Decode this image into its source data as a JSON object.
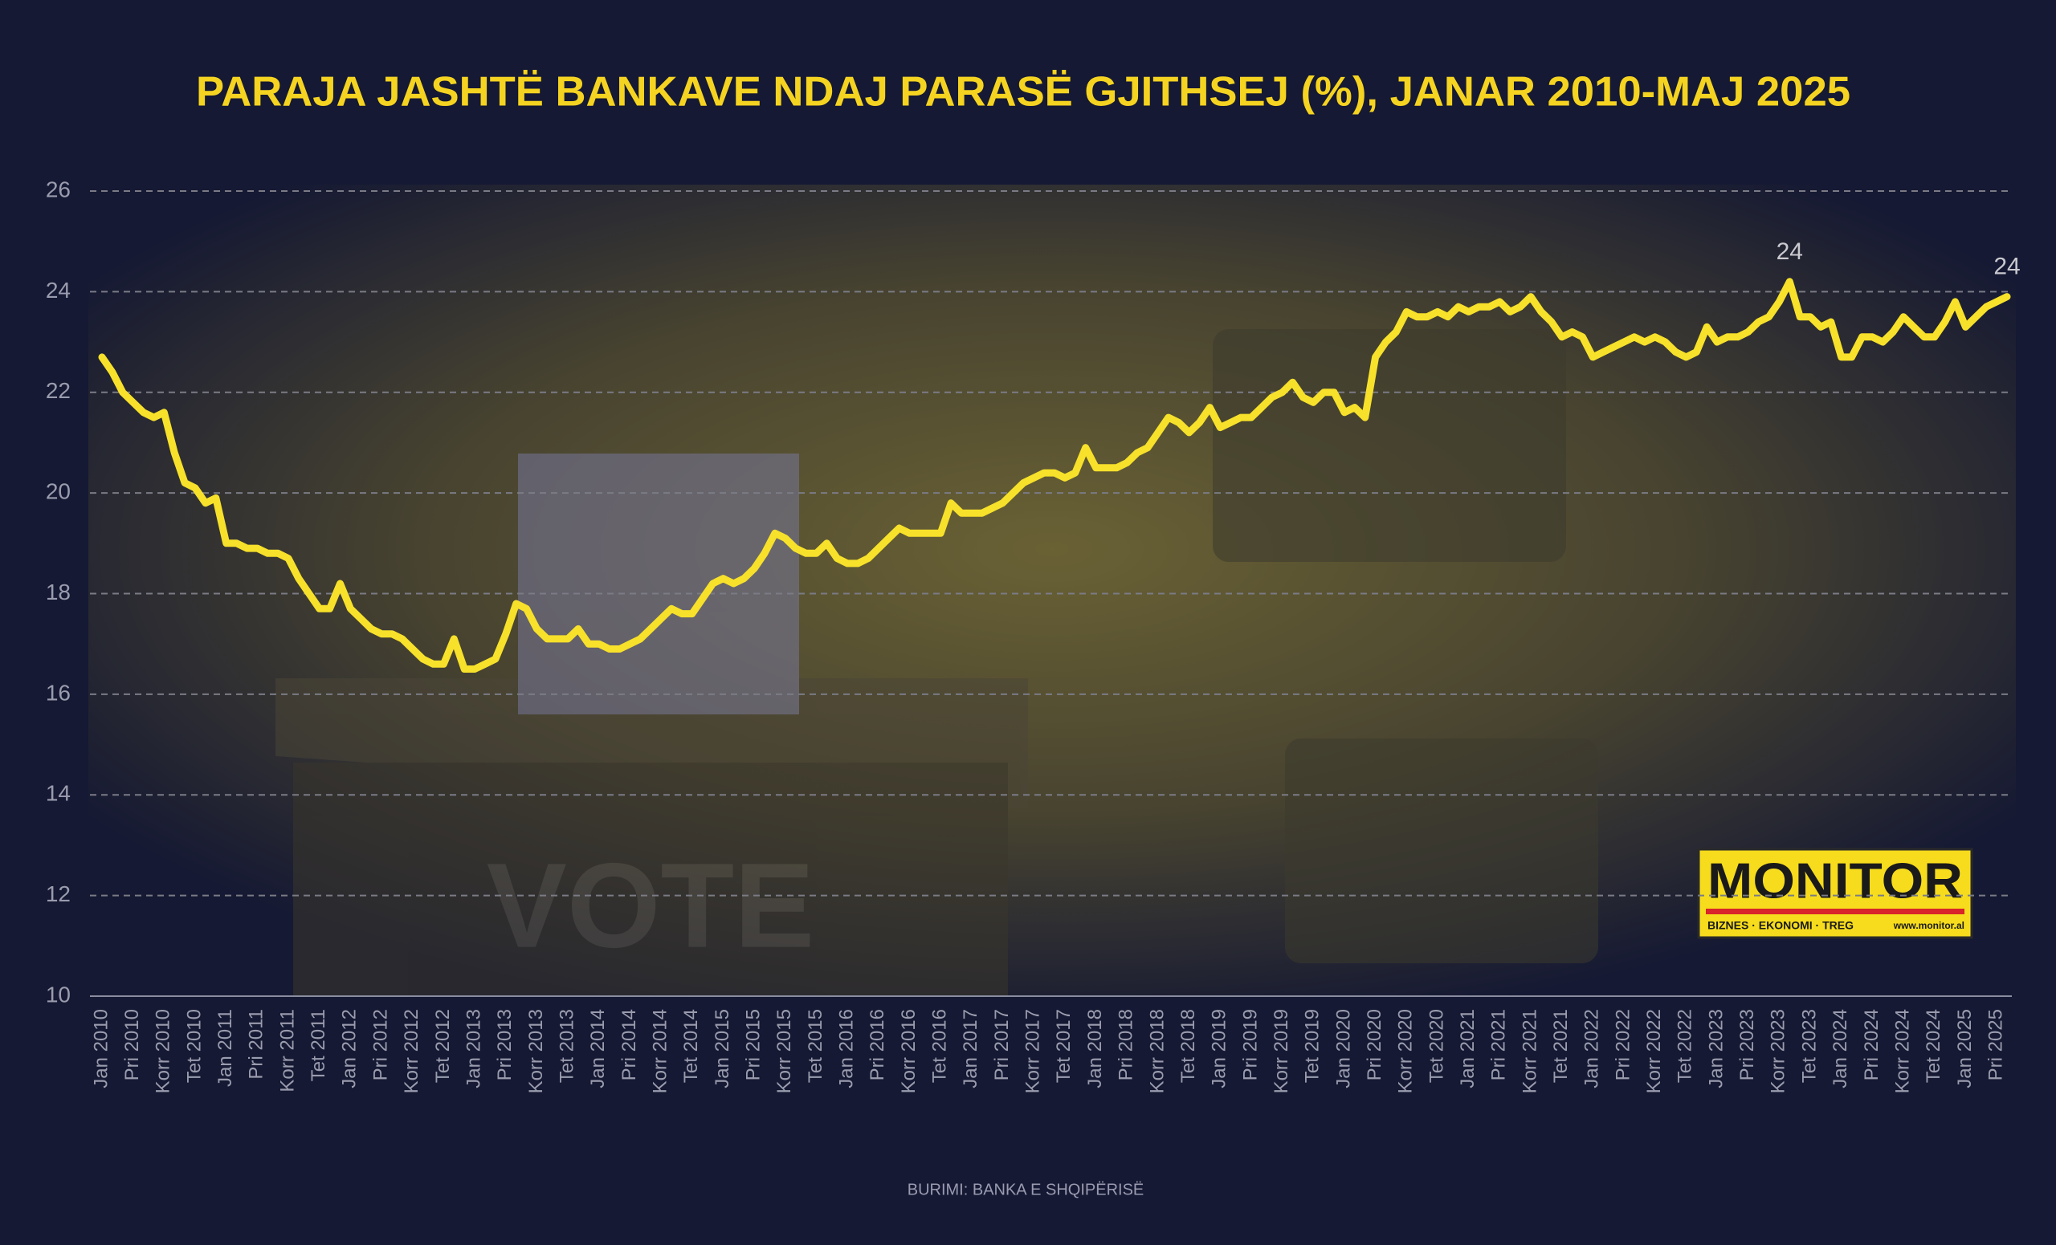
{
  "chart_data": {
    "type": "line",
    "title": "PARAJA JASHTË BANKAVE NDAJ PARASË GJITHSEJ (%), JANAR 2010-MAJ 2025",
    "source": "BURIMI: BANKA E SHQIPËRISË",
    "illustration_text": "VOTE",
    "logo": {
      "name": "MONITOR",
      "tagline": "BIZNES · EKONOMI · TREG",
      "url": "www.monitor.al"
    },
    "color": "#f7e12a",
    "ylim": [
      10,
      26
    ],
    "yticks": [
      10,
      12,
      14,
      16,
      18,
      20,
      22,
      24,
      26
    ],
    "grid": true,
    "categories": [
      "Jan 2010",
      null,
      null,
      "Pri 2010",
      null,
      null,
      "Korr 2010",
      null,
      null,
      "Tet 2010",
      null,
      null,
      "Jan 2011",
      null,
      null,
      "Pri 2011",
      null,
      null,
      "Korr 2011",
      null,
      null,
      "Tet 2011",
      null,
      null,
      "Jan 2012",
      null,
      null,
      "Pri 2012",
      null,
      null,
      "Korr 2012",
      null,
      null,
      "Tet 2012",
      null,
      null,
      "Jan 2013",
      null,
      null,
      "Pri 2013",
      null,
      null,
      "Korr 2013",
      null,
      null,
      "Tet 2013",
      null,
      null,
      "Jan 2014",
      null,
      null,
      "Pri 2014",
      null,
      null,
      "Korr 2014",
      null,
      null,
      "Tet 2014",
      null,
      null,
      "Jan 2015",
      null,
      null,
      "Pri 2015",
      null,
      null,
      "Korr 2015",
      null,
      null,
      "Tet 2015",
      null,
      null,
      "Jan 2016",
      null,
      null,
      "Pri 2016",
      null,
      null,
      "Korr 2016",
      null,
      null,
      "Tet 2016",
      null,
      null,
      "Jan 2017",
      null,
      null,
      "Pri 2017",
      null,
      null,
      "Korr 2017",
      null,
      null,
      "Tet 2017",
      null,
      null,
      "Jan 2018",
      null,
      null,
      "Pri 2018",
      null,
      null,
      "Korr 2018",
      null,
      null,
      "Tet 2018",
      null,
      null,
      "Jan 2019",
      null,
      null,
      "Pri 2019",
      null,
      null,
      "Korr 2019",
      null,
      null,
      "Tet 2019",
      null,
      null,
      "Jan 2020",
      null,
      null,
      "Pri 2020",
      null,
      null,
      "Korr 2020",
      null,
      null,
      "Tet 2020",
      null,
      null,
      "Jan 2021",
      null,
      null,
      "Pri 2021",
      null,
      null,
      "Korr 2021",
      null,
      null,
      "Tet 2021",
      null,
      null,
      "Jan 2022",
      null,
      null,
      "Pri 2022",
      null,
      null,
      "Korr 2022",
      null,
      null,
      "Tet 2022",
      null,
      null,
      "Jan 2023",
      null,
      null,
      "Pri 2023",
      null,
      null,
      "Korr 2023",
      null,
      null,
      "Tet 2023",
      null,
      null,
      "Jan 2024",
      null,
      null,
      "Pri 2024",
      null,
      null,
      "Korr 2024",
      null,
      null,
      "Tet 2024",
      null,
      null,
      "Jan 2025",
      null,
      null,
      "Pri 2025",
      null
    ],
    "values": [
      22.7,
      22.4,
      22.0,
      21.8,
      21.6,
      21.5,
      21.6,
      20.8,
      20.2,
      20.1,
      19.8,
      19.9,
      19.0,
      19.0,
      18.9,
      18.9,
      18.8,
      18.8,
      18.7,
      18.3,
      18.0,
      17.7,
      17.7,
      18.2,
      17.7,
      17.5,
      17.3,
      17.2,
      17.2,
      17.1,
      16.9,
      16.7,
      16.6,
      16.6,
      17.1,
      16.5,
      16.5,
      16.6,
      16.7,
      17.2,
      17.8,
      17.7,
      17.3,
      17.1,
      17.1,
      17.1,
      17.3,
      17.0,
      17.0,
      16.9,
      16.9,
      17.0,
      17.1,
      17.3,
      17.5,
      17.7,
      17.6,
      17.6,
      17.9,
      18.2,
      18.3,
      18.2,
      18.3,
      18.5,
      18.8,
      19.2,
      19.1,
      18.9,
      18.8,
      18.8,
      19.0,
      18.7,
      18.6,
      18.6,
      18.7,
      18.9,
      19.1,
      19.3,
      19.2,
      19.2,
      19.2,
      19.2,
      19.8,
      19.6,
      19.6,
      19.6,
      19.7,
      19.8,
      20.0,
      20.2,
      20.3,
      20.4,
      20.4,
      20.3,
      20.4,
      20.9,
      20.5,
      20.5,
      20.5,
      20.6,
      20.8,
      20.9,
      21.2,
      21.5,
      21.4,
      21.2,
      21.4,
      21.7,
      21.3,
      21.4,
      21.5,
      21.5,
      21.7,
      21.9,
      22.0,
      22.2,
      21.9,
      21.8,
      22.0,
      22.0,
      21.6,
      21.7,
      21.5,
      22.7,
      23.0,
      23.2,
      23.6,
      23.5,
      23.5,
      23.6,
      23.5,
      23.7,
      23.6,
      23.7,
      23.7,
      23.8,
      23.6,
      23.7,
      23.9,
      23.6,
      23.4,
      23.1,
      23.2,
      23.1,
      22.7,
      22.8,
      22.9,
      23.0,
      23.1,
      23.0,
      23.1,
      23.0,
      22.8,
      22.7,
      22.8,
      23.3,
      23.0,
      23.1,
      23.1,
      23.2,
      23.4,
      23.5,
      23.8,
      24.2,
      23.5,
      23.5,
      23.3,
      23.4,
      22.7,
      22.7,
      23.1,
      23.1,
      23.0,
      23.2,
      23.5,
      23.3,
      23.1,
      23.1,
      23.4,
      23.8,
      23.3,
      23.5,
      23.7,
      23.8,
      23.9
    ],
    "value_labels": [
      null,
      null,
      null,
      null,
      null,
      null,
      null,
      null,
      null,
      null,
      null,
      null,
      null,
      null,
      null,
      null,
      null,
      null,
      null,
      null,
      null,
      null,
      null,
      null,
      null,
      null,
      null,
      null,
      null,
      null,
      null,
      null,
      null,
      null,
      null,
      null,
      null,
      null,
      null,
      null,
      null,
      null,
      null,
      null,
      null,
      null,
      null,
      null,
      null,
      null,
      null,
      null,
      null,
      null,
      null,
      null,
      null,
      null,
      null,
      null,
      null,
      null,
      null,
      null,
      null,
      null,
      null,
      null,
      null,
      null,
      null,
      null,
      null,
      null,
      null,
      null,
      null,
      null,
      null,
      null,
      null,
      null,
      null,
      null,
      null,
      null,
      null,
      null,
      null,
      null,
      null,
      null,
      null,
      null,
      null,
      null,
      null,
      null,
      null,
      null,
      null,
      null,
      null,
      null,
      null,
      null,
      null,
      null,
      null,
      null,
      null,
      null,
      null,
      null,
      null,
      null,
      null,
      null,
      null,
      null,
      null,
      null,
      null,
      null,
      null,
      null,
      null,
      null,
      null,
      null,
      null,
      null,
      null,
      null,
      null,
      null,
      null,
      null,
      null,
      null,
      null,
      null,
      null,
      null,
      null,
      null,
      null,
      null,
      null,
      null,
      null,
      null,
      null,
      null,
      null,
      null,
      null,
      null,
      null,
      null,
      null,
      null,
      null,
      "24",
      null,
      null,
      null,
      null,
      null,
      null,
      null,
      null,
      null,
      null,
      null,
      null,
      null,
      null,
      null,
      null,
      null,
      null,
      null,
      null,
      "24"
    ]
  }
}
